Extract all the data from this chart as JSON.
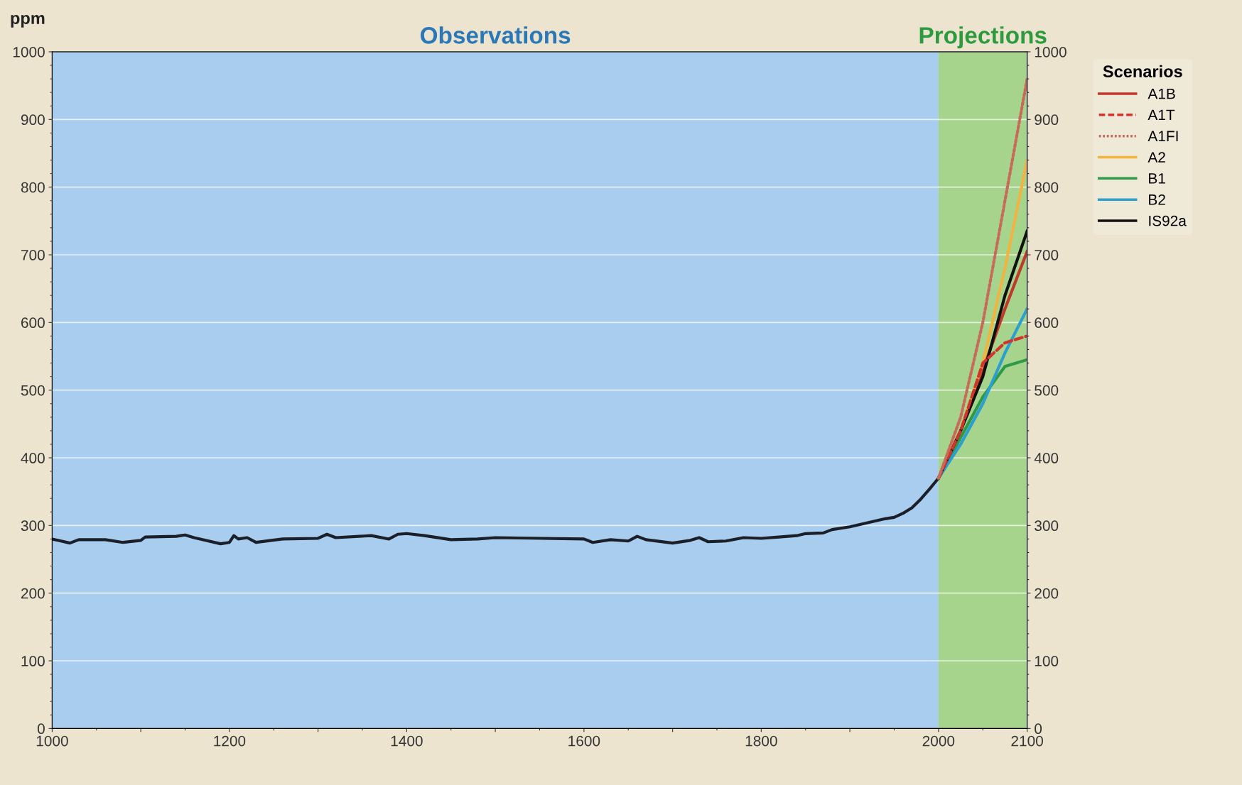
{
  "chart_data": {
    "type": "line",
    "ylabel": "ppm",
    "legend_title": "Scenarios",
    "legend": "top right",
    "grid": "y",
    "xlim": [
      1000,
      2100
    ],
    "ylim": [
      0,
      1000
    ],
    "y2lim": [
      0,
      1000
    ],
    "xticks": [
      1000,
      {
        "value": 1100,
        "label": null
      },
      1200,
      {
        "value": 1300,
        "label": null
      },
      1400,
      {
        "value": 1500,
        "label": null
      },
      1600,
      {
        "value": 1700,
        "label": null
      },
      1800,
      {
        "value": 1900,
        "label": null
      },
      2000,
      2100
    ],
    "yticks": [
      0,
      100,
      200,
      300,
      400,
      500,
      600,
      700,
      800,
      900,
      1000
    ],
    "y2ticks": [
      0,
      100,
      200,
      300,
      400,
      500,
      600,
      700,
      800,
      900,
      1000
    ],
    "bands": [
      {
        "axis": "x",
        "from": 1000,
        "to": 2000,
        "label": "Observations",
        "color": "#a9cdee"
      },
      {
        "axis": "x",
        "from": 2000,
        "to": 2100,
        "label": "Projections",
        "color": "#a6d48c"
      }
    ],
    "series": [
      {
        "color": "#1a1f2a",
        "line_style": "solid",
        "x": [
          1000,
          1010,
          1020,
          1030,
          1060,
          1080,
          1100,
          1105,
          1140,
          1150,
          1160,
          1190,
          1200,
          1205,
          1210,
          1220,
          1230,
          1260,
          1300,
          1310,
          1320,
          1360,
          1380,
          1390,
          1400,
          1420,
          1450,
          1480,
          1500,
          1600,
          1610,
          1630,
          1650,
          1660,
          1670,
          1700,
          1720,
          1730,
          1740,
          1760,
          1780,
          1800,
          1820,
          1840,
          1850,
          1870,
          1880,
          1900,
          1920,
          1940,
          1950,
          1960,
          1970,
          1980,
          1990,
          2000
        ],
        "values": [
          280,
          277,
          274,
          279,
          279,
          275,
          278,
          283,
          284,
          286,
          282,
          273,
          275,
          285,
          280,
          282,
          275,
          280,
          281,
          287,
          282,
          285,
          280,
          287,
          288,
          285,
          279,
          280,
          282,
          280,
          275,
          279,
          277,
          284,
          279,
          274,
          278,
          282,
          276,
          277,
          282,
          281,
          283,
          285,
          288,
          289,
          294,
          298,
          304,
          310,
          312,
          318,
          326,
          339,
          354,
          370
        ]
      },
      {
        "name": "A1B",
        "color": "#c0392b",
        "line_style": "solid",
        "x": [
          2000,
          2025,
          2050,
          2075,
          2100
        ],
        "values": [
          370,
          440,
          530,
          620,
          705
        ]
      },
      {
        "name": "A1T",
        "color": "#d0342c",
        "line_style": "dashed",
        "x": [
          2000,
          2025,
          2050,
          2075,
          2100
        ],
        "values": [
          370,
          440,
          540,
          570,
          580
        ]
      },
      {
        "name": "A1FI",
        "color": "#c86a5a",
        "line_style": "dotted",
        "x": [
          2000,
          2025,
          2050,
          2075,
          2100
        ],
        "values": [
          370,
          460,
          600,
          780,
          960
        ]
      },
      {
        "name": "A2",
        "color": "#f2b440",
        "line_style": "solid",
        "x": [
          2000,
          2025,
          2050,
          2075,
          2100
        ],
        "values": [
          370,
          440,
          540,
          680,
          840
        ]
      },
      {
        "name": "B1",
        "color": "#2e9a48",
        "line_style": "solid",
        "x": [
          2000,
          2025,
          2050,
          2075,
          2100
        ],
        "values": [
          370,
          430,
          490,
          535,
          545
        ]
      },
      {
        "name": "B2",
        "color": "#2a9fd0",
        "line_style": "solid",
        "x": [
          2000,
          2025,
          2050,
          2075,
          2100
        ],
        "values": [
          370,
          420,
          480,
          555,
          620
        ]
      },
      {
        "name": "IS92a",
        "color": "#111111",
        "line_style": "solid",
        "x": [
          2000,
          2025,
          2050,
          2075,
          2100
        ],
        "values": [
          370,
          440,
          520,
          640,
          735
        ]
      }
    ]
  }
}
